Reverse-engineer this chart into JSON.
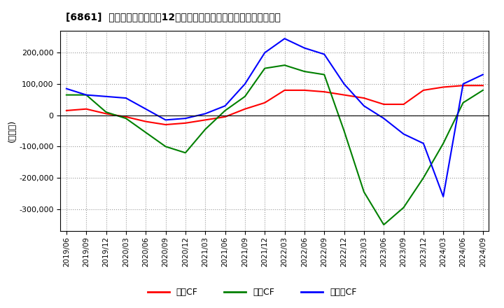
{
  "title": "[6861]  キャッシュフローの12か月移動合計の対前年同期増減額の推移",
  "ylabel": "(百万円)",
  "ylim": [
    -370000,
    270000
  ],
  "yticks": [
    -300000,
    -200000,
    -100000,
    0,
    100000,
    200000
  ],
  "legend_labels": [
    "営業CF",
    "投資CF",
    "フリーCF"
  ],
  "line_colors": [
    "#ff0000",
    "#008000",
    "#0000ff"
  ],
  "dates": [
    "2019/06",
    "2019/09",
    "2019/12",
    "2020/03",
    "2020/06",
    "2020/09",
    "2020/12",
    "2021/03",
    "2021/06",
    "2021/09",
    "2021/12",
    "2022/03",
    "2022/06",
    "2022/09",
    "2022/12",
    "2023/03",
    "2023/06",
    "2023/09",
    "2023/12",
    "2024/03",
    "2024/06",
    "2024/09"
  ],
  "sales_cf": [
    15000,
    20000,
    5000,
    -5000,
    -20000,
    -30000,
    -25000,
    -15000,
    -5000,
    20000,
    40000,
    80000,
    80000,
    75000,
    65000,
    55000,
    35000,
    35000,
    80000,
    90000,
    95000,
    95000
  ],
  "invest_cf": [
    65000,
    65000,
    10000,
    -10000,
    -55000,
    -100000,
    -120000,
    -45000,
    15000,
    60000,
    150000,
    160000,
    140000,
    130000,
    -50000,
    -245000,
    -350000,
    -295000,
    -200000,
    -90000,
    40000,
    80000
  ],
  "free_cf": [
    85000,
    65000,
    60000,
    55000,
    20000,
    -15000,
    -10000,
    5000,
    30000,
    100000,
    200000,
    245000,
    215000,
    195000,
    100000,
    30000,
    -10000,
    -60000,
    -90000,
    -260000,
    100000,
    130000
  ]
}
